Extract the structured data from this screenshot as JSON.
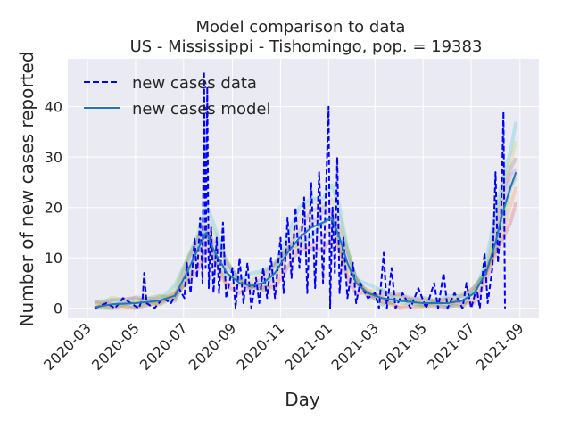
{
  "chart_data": {
    "type": "line",
    "title_line1": "Model comparison to data",
    "title_line2": "US - Mississippi - Tishomingo, pop. = 19383",
    "xlabel": "Day",
    "ylabel": "Number of new cases reported",
    "xlim": [
      "2020-02-05",
      "2021-09-25"
    ],
    "ylim": [
      -2,
      49.5
    ],
    "grid": true,
    "legend_position": "top-left",
    "x_ticks": [
      "2020-03-01",
      "2020-05-01",
      "2020-07-01",
      "2020-09-01",
      "2020-11-01",
      "2021-01-01",
      "2021-03-01",
      "2021-05-01",
      "2021-07-01",
      "2021-09-01"
    ],
    "x_tick_labels": [
      "2020-03",
      "2020-05",
      "2020-07",
      "2020-09",
      "2020-11",
      "2021-01",
      "2021-03",
      "2021-05",
      "2021-07",
      "2021-09"
    ],
    "y_ticks": [
      0,
      10,
      20,
      30,
      40
    ],
    "y_tick_labels": [
      "0",
      "10",
      "20",
      "30",
      "40"
    ],
    "colors": {
      "background": "#eaeaf2",
      "grid": "#ffffff",
      "data": "#0000ff",
      "model": "#1f77b4",
      "ensemble": [
        "#d62728",
        "#ff7f0e",
        "#2ca02c",
        "#9467bd",
        "#8c564b",
        "#bcbd22",
        "#17becf"
      ]
    },
    "series": [
      {
        "name": "new cases data",
        "style": "dashed",
        "points": [
          [
            "2020-03-10",
            0
          ],
          [
            "2020-03-25",
            1
          ],
          [
            "2020-04-05",
            0
          ],
          [
            "2020-04-15",
            2
          ],
          [
            "2020-04-25",
            1
          ],
          [
            "2020-05-05",
            0
          ],
          [
            "2020-05-10",
            2
          ],
          [
            "2020-05-12",
            7
          ],
          [
            "2020-05-15",
            1
          ],
          [
            "2020-05-25",
            0
          ],
          [
            "2020-06-05",
            2
          ],
          [
            "2020-06-15",
            1
          ],
          [
            "2020-06-25",
            4
          ],
          [
            "2020-07-02",
            2
          ],
          [
            "2020-07-05",
            9
          ],
          [
            "2020-07-10",
            3
          ],
          [
            "2020-07-15",
            14
          ],
          [
            "2020-07-18",
            6
          ],
          [
            "2020-07-22",
            18
          ],
          [
            "2020-07-25",
            5
          ],
          [
            "2020-07-27",
            47
          ],
          [
            "2020-07-29",
            8
          ],
          [
            "2020-07-31",
            44
          ],
          [
            "2020-08-02",
            4
          ],
          [
            "2020-08-05",
            16
          ],
          [
            "2020-08-08",
            3
          ],
          [
            "2020-08-12",
            14
          ],
          [
            "2020-08-15",
            3
          ],
          [
            "2020-08-20",
            17
          ],
          [
            "2020-08-24",
            2
          ],
          [
            "2020-09-01",
            8
          ],
          [
            "2020-09-05",
            0
          ],
          [
            "2020-09-10",
            10
          ],
          [
            "2020-09-15",
            1
          ],
          [
            "2020-09-20",
            9
          ],
          [
            "2020-09-25",
            0
          ],
          [
            "2020-10-01",
            6
          ],
          [
            "2020-10-05",
            1
          ],
          [
            "2020-10-10",
            8
          ],
          [
            "2020-10-15",
            2
          ],
          [
            "2020-10-20",
            10
          ],
          [
            "2020-10-25",
            2
          ],
          [
            "2020-11-01",
            14
          ],
          [
            "2020-11-05",
            3
          ],
          [
            "2020-11-10",
            18
          ],
          [
            "2020-11-15",
            6
          ],
          [
            "2020-11-20",
            20
          ],
          [
            "2020-11-25",
            8
          ],
          [
            "2020-12-01",
            22
          ],
          [
            "2020-12-05",
            3
          ],
          [
            "2020-12-10",
            25
          ],
          [
            "2020-12-15",
            4
          ],
          [
            "2020-12-20",
            27
          ],
          [
            "2020-12-25",
            5
          ],
          [
            "2021-01-01",
            40
          ],
          [
            "2021-01-03",
            0
          ],
          [
            "2021-01-06",
            20
          ],
          [
            "2021-01-09",
            7
          ],
          [
            "2021-01-12",
            30
          ],
          [
            "2021-01-15",
            3
          ],
          [
            "2021-01-20",
            14
          ],
          [
            "2021-01-25",
            2
          ],
          [
            "2021-02-01",
            9
          ],
          [
            "2021-02-05",
            1
          ],
          [
            "2021-02-10",
            5
          ],
          [
            "2021-02-20",
            2
          ],
          [
            "2021-03-01",
            3
          ],
          [
            "2021-03-06",
            0
          ],
          [
            "2021-03-12",
            11
          ],
          [
            "2021-03-16",
            0
          ],
          [
            "2021-03-22",
            8
          ],
          [
            "2021-03-27",
            0
          ],
          [
            "2021-04-05",
            3
          ],
          [
            "2021-04-15",
            0
          ],
          [
            "2021-04-25",
            4
          ],
          [
            "2021-05-05",
            0
          ],
          [
            "2021-05-15",
            5
          ],
          [
            "2021-05-20",
            0
          ],
          [
            "2021-05-27",
            7
          ],
          [
            "2021-06-01",
            0
          ],
          [
            "2021-06-10",
            3
          ],
          [
            "2021-06-20",
            0
          ],
          [
            "2021-06-25",
            5
          ],
          [
            "2021-07-01",
            0
          ],
          [
            "2021-07-08",
            4
          ],
          [
            "2021-07-12",
            0
          ],
          [
            "2021-07-18",
            11
          ],
          [
            "2021-07-22",
            1
          ],
          [
            "2021-07-28",
            8
          ],
          [
            "2021-08-01",
            27
          ],
          [
            "2021-08-04",
            9
          ],
          [
            "2021-08-08",
            18
          ],
          [
            "2021-08-11",
            39
          ],
          [
            "2021-08-13",
            0
          ]
        ]
      },
      {
        "name": "new cases model",
        "style": "solid",
        "points": [
          [
            "2020-03-10",
            0.2
          ],
          [
            "2020-04-01",
            0.8
          ],
          [
            "2020-05-01",
            1.0
          ],
          [
            "2020-06-01",
            1.5
          ],
          [
            "2020-06-20",
            2.5
          ],
          [
            "2020-07-05",
            7
          ],
          [
            "2020-07-20",
            12
          ],
          [
            "2020-07-30",
            15
          ],
          [
            "2020-08-10",
            11
          ],
          [
            "2020-08-25",
            7
          ],
          [
            "2020-09-10",
            5
          ],
          [
            "2020-09-25",
            4.5
          ],
          [
            "2020-10-10",
            5
          ],
          [
            "2020-10-25",
            7
          ],
          [
            "2020-11-10",
            11
          ],
          [
            "2020-11-25",
            14
          ],
          [
            "2020-12-10",
            16
          ],
          [
            "2020-12-25",
            17
          ],
          [
            "2021-01-05",
            18
          ],
          [
            "2021-01-15",
            14
          ],
          [
            "2021-01-25",
            9
          ],
          [
            "2021-02-05",
            5
          ],
          [
            "2021-02-20",
            3
          ],
          [
            "2021-03-10",
            2
          ],
          [
            "2021-04-01",
            1.5
          ],
          [
            "2021-05-01",
            1
          ],
          [
            "2021-06-01",
            1
          ],
          [
            "2021-06-20",
            1.5
          ],
          [
            "2021-07-05",
            3
          ],
          [
            "2021-07-20",
            7
          ],
          [
            "2021-08-01",
            13
          ],
          [
            "2021-08-10",
            19
          ],
          [
            "2021-08-20",
            24
          ],
          [
            "2021-08-27",
            27
          ]
        ]
      }
    ]
  }
}
